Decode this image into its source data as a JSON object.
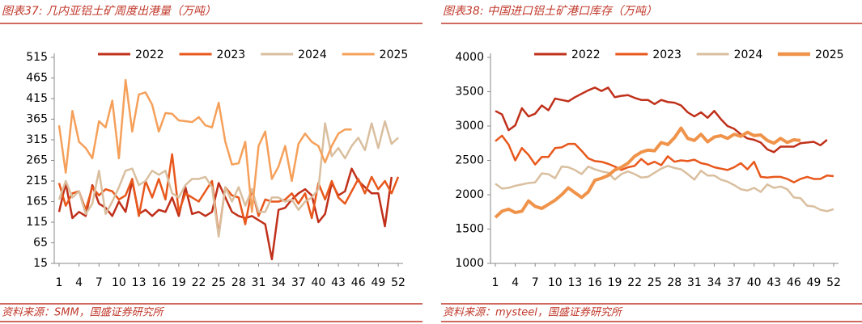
{
  "chart_data": [
    {
      "type": "line",
      "title": "图表37:  几内亚铝土矿周度出港量（万吨）",
      "source": "资料来源：SMM，国盛证券研究所",
      "x": [
        1,
        2,
        3,
        4,
        5,
        6,
        7,
        8,
        9,
        10,
        11,
        12,
        13,
        14,
        15,
        16,
        17,
        18,
        19,
        20,
        21,
        22,
        23,
        24,
        25,
        26,
        27,
        28,
        29,
        30,
        31,
        32,
        33,
        34,
        35,
        36,
        37,
        38,
        39,
        40,
        41,
        42,
        43,
        44,
        45,
        46,
        47,
        48,
        49,
        50,
        51,
        52
      ],
      "xlim": [
        1,
        52
      ],
      "xticks": [
        1,
        4,
        7,
        10,
        13,
        16,
        19,
        22,
        25,
        28,
        31,
        34,
        37,
        40,
        43,
        46,
        49,
        52
      ],
      "ylim": [
        15,
        515
      ],
      "yticks": [
        15,
        65,
        115,
        165,
        215,
        265,
        315,
        365,
        415,
        465,
        515
      ],
      "legend": "top",
      "series": [
        {
          "name": "2022",
          "color": "#c0301a",
          "values": [
            140,
            210,
            125,
            140,
            130,
            205,
            160,
            150,
            130,
            165,
            140,
            215,
            135,
            145,
            130,
            145,
            140,
            175,
            130,
            200,
            135,
            140,
            130,
            140,
            210,
            175,
            140,
            130,
            125,
            130,
            120,
            110,
            25,
            145,
            150,
            170,
            185,
            195,
            180,
            115,
            135,
            210,
            180,
            190,
            245,
            215,
            200,
            185,
            185,
            105,
            225,
            null
          ]
        },
        {
          "name": "2023",
          "color": "#e8581c",
          "values": [
            210,
            155,
            185,
            190,
            145,
            200,
            180,
            195,
            190,
            170,
            180,
            220,
            130,
            215,
            175,
            220,
            170,
            280,
            140,
            185,
            175,
            165,
            190,
            215,
            85,
            200,
            180,
            175,
            110,
            195,
            130,
            170,
            165,
            165,
            170,
            185,
            160,
            185,
            125,
            210,
            170,
            215,
            175,
            160,
            190,
            220,
            185,
            225,
            195,
            215,
            185,
            225
          ]
        },
        {
          "name": "2024",
          "color": "#d9bf9f",
          "values": [
            170,
            215,
            175,
            190,
            135,
            160,
            240,
            135,
            165,
            200,
            240,
            245,
            205,
            215,
            240,
            230,
            240,
            185,
            175,
            205,
            220,
            220,
            225,
            200,
            80,
            200,
            165,
            200,
            155,
            195,
            140,
            140,
            175,
            175,
            165,
            170,
            145,
            165,
            175,
            195,
            355,
            275,
            295,
            270,
            300,
            320,
            290,
            355,
            295,
            360,
            305,
            320
          ]
        },
        {
          "name": "2025",
          "color": "#f5a05a",
          "values": [
            350,
            235,
            385,
            310,
            295,
            270,
            360,
            345,
            410,
            270,
            460,
            335,
            425,
            430,
            400,
            335,
            380,
            378,
            362,
            360,
            358,
            370,
            350,
            345,
            405,
            310,
            255,
            258,
            310,
            140,
            300,
            335,
            220,
            250,
            300,
            215,
            305,
            330,
            310,
            300,
            260,
            300,
            330,
            340,
            340,
            null,
            null,
            null,
            null,
            null,
            null,
            null
          ]
        }
      ]
    },
    {
      "type": "line",
      "title": "图表38:  中国进口铝土矿港口库存（万吨）",
      "source": "资料来源：mysteel，国盛证券研究所",
      "x": [
        1,
        2,
        3,
        4,
        5,
        6,
        7,
        8,
        9,
        10,
        11,
        12,
        13,
        14,
        15,
        16,
        17,
        18,
        19,
        20,
        21,
        22,
        23,
        24,
        25,
        26,
        27,
        28,
        29,
        30,
        31,
        32,
        33,
        34,
        35,
        36,
        37,
        38,
        39,
        40,
        41,
        42,
        43,
        44,
        45,
        46,
        47,
        48,
        49,
        50,
        51,
        52
      ],
      "xlim": [
        1,
        52
      ],
      "xticks": [
        1,
        4,
        7,
        10,
        13,
        16,
        19,
        22,
        25,
        28,
        31,
        34,
        37,
        40,
        43,
        46,
        49,
        52
      ],
      "ylim": [
        1000,
        4000
      ],
      "yticks": [
        1000,
        1500,
        2000,
        2500,
        3000,
        3500,
        4000
      ],
      "legend": "top",
      "series": [
        {
          "name": "2022",
          "color": "#c0301a",
          "values": [
            3220,
            3170,
            2940,
            3010,
            3260,
            3140,
            3180,
            3300,
            3230,
            3400,
            3380,
            3360,
            3420,
            3470,
            3520,
            3560,
            3510,
            3560,
            3420,
            3440,
            3450,
            3410,
            3380,
            3380,
            3320,
            3380,
            3350,
            3340,
            3300,
            3200,
            3140,
            3200,
            3120,
            3220,
            3100,
            3000,
            2960,
            2880,
            2820,
            2800,
            2760,
            2660,
            2620,
            2700,
            2700,
            2700,
            2750,
            2760,
            2770,
            2720,
            2800,
            null
          ]
        },
        {
          "name": "2023",
          "color": "#e8581c",
          "values": [
            2780,
            2860,
            2730,
            2500,
            2680,
            2580,
            2440,
            2550,
            2550,
            2680,
            2690,
            2740,
            2740,
            2640,
            2530,
            2490,
            2480,
            2450,
            2410,
            2360,
            2400,
            2420,
            2520,
            2440,
            2480,
            2430,
            2560,
            2480,
            2500,
            2490,
            2510,
            2460,
            2440,
            2400,
            2380,
            2360,
            2400,
            2460,
            2370,
            2480,
            2260,
            2250,
            2260,
            2260,
            2230,
            2180,
            2230,
            2260,
            2230,
            2230,
            2280,
            2270
          ]
        },
        {
          "name": "2024",
          "color": "#d9bf9f",
          "values": [
            2160,
            2090,
            2100,
            2130,
            2150,
            2170,
            2180,
            2310,
            2300,
            2240,
            2410,
            2400,
            2360,
            2300,
            2410,
            2370,
            2340,
            2320,
            2220,
            2300,
            2340,
            2300,
            2250,
            2260,
            2320,
            2380,
            2420,
            2390,
            2370,
            2300,
            2220,
            2350,
            2280,
            2280,
            2220,
            2190,
            2140,
            2080,
            2060,
            2100,
            2040,
            2150,
            2100,
            2120,
            2080,
            1960,
            1950,
            1840,
            1830,
            1780,
            1760,
            1790
          ]
        },
        {
          "name": "2025",
          "color": "#f0934a",
          "values": [
            1670,
            1760,
            1790,
            1740,
            1760,
            1910,
            1830,
            1800,
            1860,
            1920,
            2000,
            2100,
            2030,
            1960,
            2040,
            2210,
            2240,
            2280,
            2360,
            2400,
            2460,
            2560,
            2620,
            2650,
            2640,
            2760,
            2730,
            2830,
            2970,
            2820,
            2790,
            2880,
            2770,
            2840,
            2860,
            2820,
            2880,
            2850,
            2910,
            2860,
            2870,
            2790,
            2750,
            2820,
            2760,
            2800,
            2790,
            null,
            null,
            null,
            null,
            null
          ]
        }
      ]
    }
  ]
}
